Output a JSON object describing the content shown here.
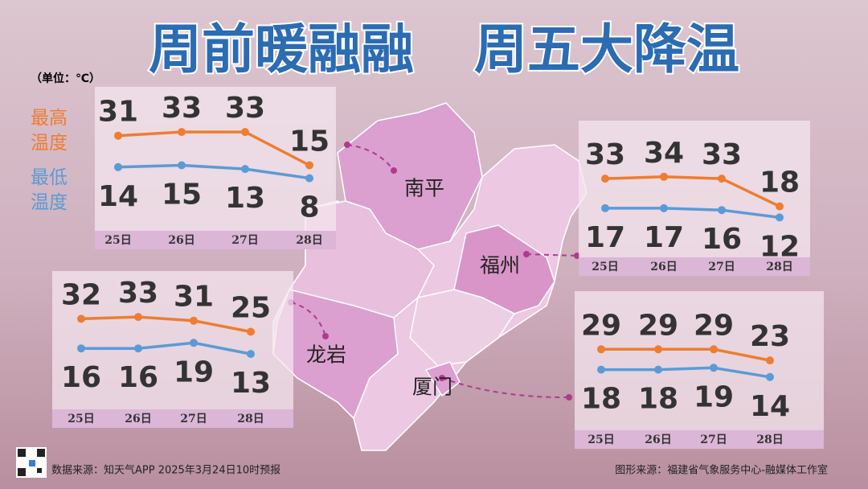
{
  "header": {
    "title_left": "周前暖融融",
    "title_right": "周五大降温",
    "unit": "（单位：℃）"
  },
  "legend": [
    {
      "name": "最高温度",
      "color": "#ee7d31"
    },
    {
      "name": "最低温度",
      "color": "#5b9bd5"
    }
  ],
  "chart_data": [
    {
      "type": "line",
      "title": "南平",
      "categories": [
        "25日",
        "26日",
        "27日",
        "28日"
      ],
      "series": [
        {
          "color": "#ee7d31",
          "values": [
            31,
            33,
            33,
            15
          ]
        },
        {
          "color": "#5b9bd5",
          "values": [
            14,
            15,
            13,
            8
          ]
        }
      ]
    },
    {
      "type": "line",
      "title": "福州",
      "categories": [
        "25日",
        "26日",
        "27日",
        "28日"
      ],
      "series": [
        {
          "color": "#ee7d31",
          "values": [
            33,
            34,
            33,
            18
          ]
        },
        {
          "color": "#5b9bd5",
          "values": [
            17,
            17,
            16,
            12
          ]
        }
      ]
    },
    {
      "type": "line",
      "title": "龙岩",
      "categories": [
        "25日",
        "26日",
        "27日",
        "28日"
      ],
      "series": [
        {
          "color": "#ee7d31",
          "values": [
            32,
            33,
            31,
            25
          ]
        },
        {
          "color": "#5b9bd5",
          "values": [
            16,
            16,
            19,
            13
          ]
        }
      ]
    },
    {
      "type": "line",
      "title": "厦门",
      "categories": [
        "25日",
        "26日",
        "27日",
        "28日"
      ],
      "series": [
        {
          "color": "#ee7d31",
          "values": [
            29,
            29,
            29,
            23
          ]
        },
        {
          "color": "#5b9bd5",
          "values": [
            18,
            18,
            19,
            14
          ]
        }
      ]
    }
  ],
  "footer": {
    "source": "数据来源：知天气APP 2025年3月24日10时预报",
    "credit": "图形来源：福建省气象服务中心-融媒体工作室"
  }
}
